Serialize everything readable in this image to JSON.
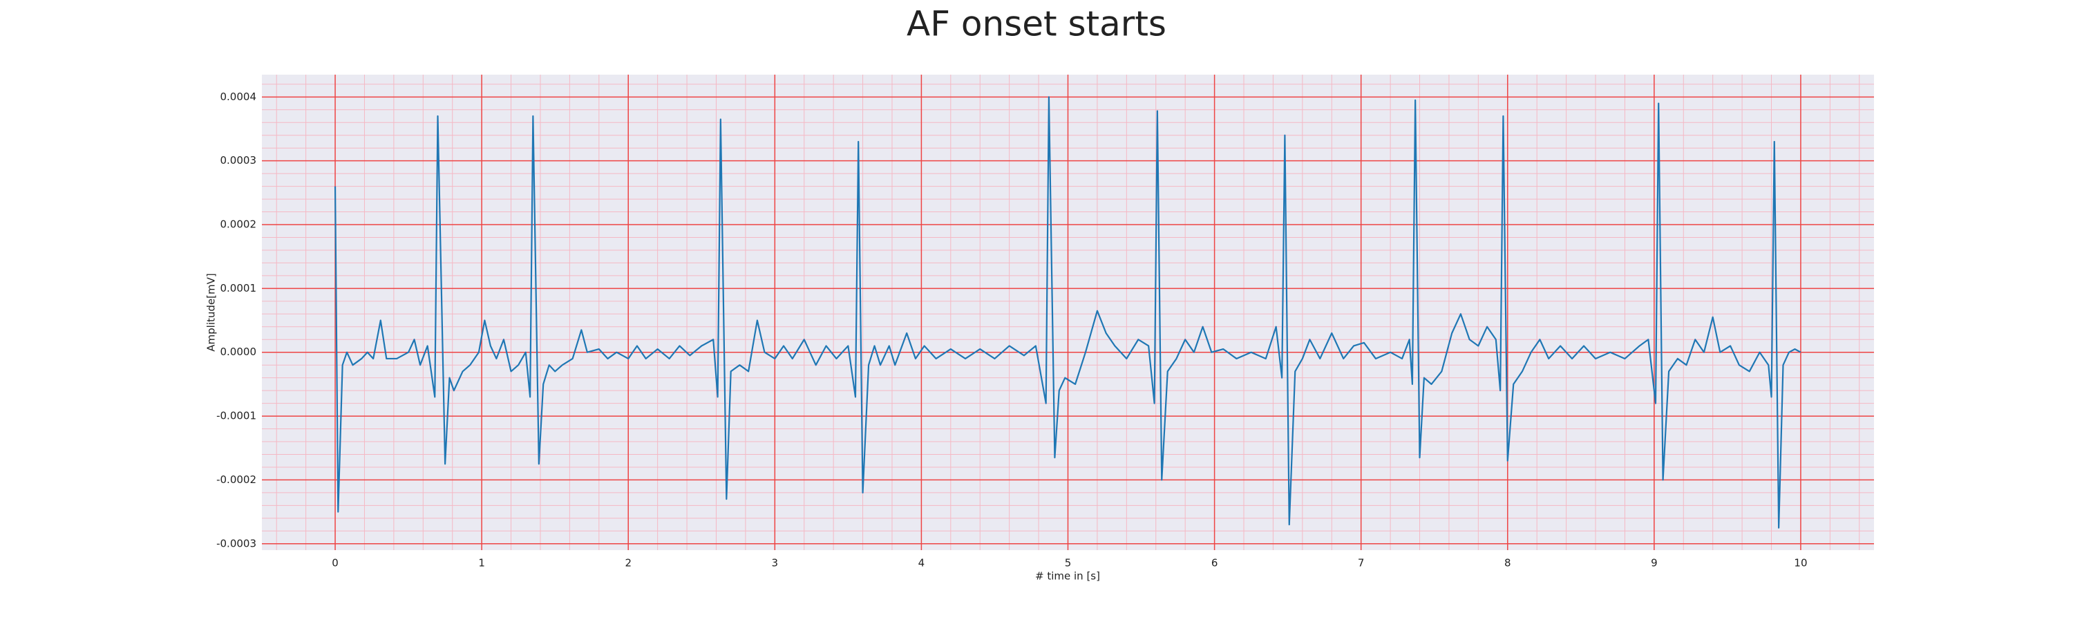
{
  "chart_data": {
    "type": "line",
    "title": "AF onset starts",
    "xlabel": "# time in [s]",
    "ylabel": "Amplitude[mV]",
    "x": [
      0,
      0.02,
      0.05,
      0.08,
      0.12,
      0.18,
      0.22,
      0.26,
      0.31,
      0.35,
      0.42,
      0.5,
      0.54,
      0.58,
      0.63,
      0.68,
      0.7,
      0.75,
      0.78,
      0.81,
      0.87,
      0.92,
      0.98,
      1.02,
      1.06,
      1.1,
      1.15,
      1.2,
      1.25,
      1.3,
      1.33,
      1.35,
      1.39,
      1.42,
      1.46,
      1.5,
      1.55,
      1.62,
      1.68,
      1.72,
      1.8,
      1.86,
      1.92,
      2.0,
      2.06,
      2.12,
      2.2,
      2.28,
      2.35,
      2.42,
      2.5,
      2.58,
      2.61,
      2.63,
      2.67,
      2.7,
      2.76,
      2.82,
      2.88,
      2.93,
      3.0,
      3.06,
      3.12,
      3.2,
      3.28,
      3.35,
      3.42,
      3.5,
      3.55,
      3.57,
      3.6,
      3.64,
      3.68,
      3.72,
      3.78,
      3.82,
      3.9,
      3.96,
      4.02,
      4.1,
      4.2,
      4.3,
      4.4,
      4.5,
      4.6,
      4.7,
      4.78,
      4.85,
      4.87,
      4.91,
      4.94,
      4.98,
      5.05,
      5.12,
      5.2,
      5.26,
      5.32,
      5.4,
      5.48,
      5.55,
      5.59,
      5.61,
      5.64,
      5.68,
      5.74,
      5.8,
      5.86,
      5.92,
      5.98,
      6.06,
      6.15,
      6.25,
      6.35,
      6.42,
      6.46,
      6.48,
      6.51,
      6.55,
      6.6,
      6.65,
      6.72,
      6.8,
      6.88,
      6.95,
      7.02,
      7.1,
      7.2,
      7.28,
      7.33,
      7.35,
      7.37,
      7.4,
      7.43,
      7.48,
      7.55,
      7.62,
      7.68,
      7.74,
      7.8,
      7.86,
      7.92,
      7.95,
      7.97,
      8.0,
      8.04,
      8.1,
      8.16,
      8.22,
      8.28,
      8.36,
      8.44,
      8.52,
      8.6,
      8.7,
      8.8,
      8.9,
      8.96,
      9.01,
      9.03,
      9.06,
      9.1,
      9.16,
      9.22,
      9.28,
      9.34,
      9.4,
      9.45,
      9.52,
      9.58,
      9.65,
      9.72,
      9.78,
      9.8,
      9.82,
      9.85,
      9.88,
      9.92,
      9.96,
      10.0
    ],
    "series": [
      {
        "color": "#1f77b4",
        "values": [
          0.00026,
          -0.00025,
          -2e-05,
          0,
          -2e-05,
          -1e-05,
          0,
          -1e-05,
          5e-05,
          -1e-05,
          -1e-05,
          0,
          2e-05,
          -2e-05,
          1e-05,
          -7e-05,
          0.00037,
          -0.000175,
          -4e-05,
          -6e-05,
          -3e-05,
          -2e-05,
          0,
          5e-05,
          1e-05,
          -1e-05,
          2e-05,
          -3e-05,
          -2e-05,
          0,
          -7e-05,
          0.00037,
          -0.000175,
          -5e-05,
          -2e-05,
          -3e-05,
          -2e-05,
          -1e-05,
          3.5e-05,
          0,
          5e-06,
          -1e-05,
          0,
          -1e-05,
          1e-05,
          -1e-05,
          5e-06,
          -1e-05,
          1e-05,
          -5e-06,
          1e-05,
          2e-05,
          -7e-05,
          0.000365,
          -0.00023,
          -3e-05,
          -2e-05,
          -3e-05,
          5e-05,
          0,
          -1e-05,
          1e-05,
          -1e-05,
          2e-05,
          -2e-05,
          1e-05,
          -1e-05,
          1e-05,
          -7e-05,
          0.00033,
          -0.00022,
          -2e-05,
          1e-05,
          -2e-05,
          1e-05,
          -2e-05,
          3e-05,
          -1e-05,
          1e-05,
          -1e-05,
          5e-06,
          -1e-05,
          5e-06,
          -1e-05,
          1e-05,
          -5e-06,
          1e-05,
          -8e-05,
          0.0004,
          -0.000165,
          -6e-05,
          -4e-05,
          -5e-05,
          0,
          6.5e-05,
          3e-05,
          1e-05,
          -1e-05,
          2e-05,
          1e-05,
          -8e-05,
          0.000378,
          -0.0002,
          -3e-05,
          -1e-05,
          2e-05,
          0,
          4e-05,
          0,
          5e-06,
          -1e-05,
          0,
          -1e-05,
          4e-05,
          -4e-05,
          0.00034,
          -0.00027,
          -3e-05,
          -1e-05,
          2e-05,
          -1e-05,
          3e-05,
          -1e-05,
          1e-05,
          1.5e-05,
          -1e-05,
          0,
          -1e-05,
          2e-05,
          -5e-05,
          0.000395,
          -0.000165,
          -4e-05,
          -5e-05,
          -3e-05,
          3e-05,
          6e-05,
          2e-05,
          1e-05,
          4e-05,
          2e-05,
          -6e-05,
          0.00037,
          -0.00017,
          -5e-05,
          -3e-05,
          0,
          2e-05,
          -1e-05,
          1e-05,
          -1e-05,
          1e-05,
          -1e-05,
          0,
          -1e-05,
          1e-05,
          2e-05,
          -8e-05,
          0.00039,
          -0.0002,
          -3e-05,
          -1e-05,
          -2e-05,
          2e-05,
          0,
          5.5e-05,
          0,
          1e-05,
          -2e-05,
          -3e-05,
          0,
          -2e-05,
          -7e-05,
          0.00033,
          -0.000275,
          -2e-05,
          0,
          5e-06,
          0
        ]
      }
    ],
    "xlim": [
      -0.5,
      10.5
    ],
    "xticks": [
      0,
      1,
      2,
      3,
      4,
      5,
      6,
      7,
      8,
      9,
      10
    ],
    "ylim": [
      -0.00031,
      0.000435
    ],
    "yticks": [
      {
        "value": -0.0003,
        "label": "-0.0003"
      },
      {
        "value": -0.0002,
        "label": "-0.0002"
      },
      {
        "value": -0.0001,
        "label": "-0.0001"
      },
      {
        "value": 0,
        "label": "0.0000"
      },
      {
        "value": 0.0001,
        "label": "0.0001"
      },
      {
        "value": 0.0002,
        "label": "0.0002"
      },
      {
        "value": 0.0003,
        "label": "0.0003"
      },
      {
        "value": 0.0004,
        "label": "0.0004"
      }
    ],
    "grid": true,
    "minor_grid": true
  }
}
